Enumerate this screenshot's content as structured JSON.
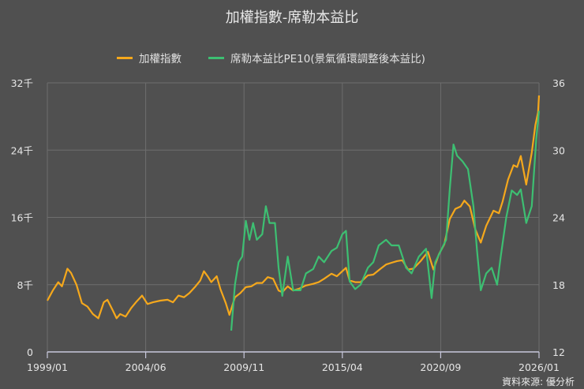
{
  "title": "加權指數-席勒本益比",
  "source": "資料來源: 優分析",
  "colors": {
    "background": "#505050",
    "grid": "#6e6e6e",
    "axis": "#c8c8dc",
    "taiex": "#f5a81c",
    "pe10": "#3dbf72"
  },
  "legend": [
    {
      "label": "加權指數",
      "color": "#f5a81c"
    },
    {
      "label": "席勒本益比PE10(景氣循環調整後本益比)",
      "color": "#3dbf72"
    }
  ],
  "chart_data": {
    "type": "line",
    "title": "加權指數-席勒本益比",
    "xlabel": "",
    "ylabel_left": "加權指數",
    "ylabel_right": "席勒本益比PE10",
    "x_ticks": [
      "1999/01",
      "2004/06",
      "2009/11",
      "2015/04",
      "2020/09",
      "2026/01"
    ],
    "y_left_ticks": [
      "0",
      "8千",
      "16千",
      "24千",
      "32千"
    ],
    "y_left_range": [
      0,
      32000
    ],
    "y_right_ticks": [
      "12",
      "18",
      "24",
      "30",
      "36"
    ],
    "y_right_range": [
      12,
      36
    ],
    "grid": true,
    "legend_position": "top",
    "series": [
      {
        "name": "加權指數",
        "axis": "left",
        "points": [
          [
            1999.0,
            6100
          ],
          [
            1999.3,
            7300
          ],
          [
            1999.6,
            8300
          ],
          [
            1999.8,
            7800
          ],
          [
            2000.1,
            9900
          ],
          [
            2000.3,
            9400
          ],
          [
            2000.6,
            8000
          ],
          [
            2000.9,
            5800
          ],
          [
            2001.2,
            5400
          ],
          [
            2001.5,
            4500
          ],
          [
            2001.8,
            4000
          ],
          [
            2002.1,
            5900
          ],
          [
            2002.3,
            6200
          ],
          [
            2002.6,
            4900
          ],
          [
            2002.8,
            4000
          ],
          [
            2003.0,
            4500
          ],
          [
            2003.3,
            4200
          ],
          [
            2003.6,
            5200
          ],
          [
            2003.9,
            6000
          ],
          [
            2004.2,
            6700
          ],
          [
            2004.5,
            5700
          ],
          [
            2004.8,
            5900
          ],
          [
            2005.2,
            6100
          ],
          [
            2005.6,
            6200
          ],
          [
            2005.9,
            5900
          ],
          [
            2006.2,
            6700
          ],
          [
            2006.5,
            6500
          ],
          [
            2006.8,
            7000
          ],
          [
            2007.1,
            7700
          ],
          [
            2007.4,
            8500
          ],
          [
            2007.6,
            9600
          ],
          [
            2007.8,
            9000
          ],
          [
            2008.0,
            8300
          ],
          [
            2008.3,
            9000
          ],
          [
            2008.5,
            7500
          ],
          [
            2008.8,
            5800
          ],
          [
            2009.0,
            4400
          ],
          [
            2009.3,
            6500
          ],
          [
            2009.6,
            7000
          ],
          [
            2009.9,
            7700
          ],
          [
            2010.2,
            7800
          ],
          [
            2010.5,
            8200
          ],
          [
            2010.8,
            8200
          ],
          [
            2011.1,
            8900
          ],
          [
            2011.4,
            8700
          ],
          [
            2011.7,
            7300
          ],
          [
            2011.9,
            7100
          ],
          [
            2012.2,
            7800
          ],
          [
            2012.5,
            7300
          ],
          [
            2012.8,
            7500
          ],
          [
            2013.2,
            7900
          ],
          [
            2013.6,
            8100
          ],
          [
            2013.9,
            8300
          ],
          [
            2014.2,
            8700
          ],
          [
            2014.6,
            9300
          ],
          [
            2014.9,
            9000
          ],
          [
            2015.2,
            9600
          ],
          [
            2015.4,
            10000
          ],
          [
            2015.6,
            8500
          ],
          [
            2015.9,
            8300
          ],
          [
            2016.2,
            8300
          ],
          [
            2016.6,
            9100
          ],
          [
            2016.9,
            9200
          ],
          [
            2017.3,
            9900
          ],
          [
            2017.6,
            10400
          ],
          [
            2017.9,
            10600
          ],
          [
            2018.2,
            10800
          ],
          [
            2018.5,
            10900
          ],
          [
            2018.8,
            9800
          ],
          [
            2019.1,
            9900
          ],
          [
            2019.5,
            10800
          ],
          [
            2019.9,
            11900
          ],
          [
            2020.2,
            9800
          ],
          [
            2020.5,
            11600
          ],
          [
            2020.8,
            12800
          ],
          [
            2021.1,
            15800
          ],
          [
            2021.4,
            17000
          ],
          [
            2021.7,
            17300
          ],
          [
            2021.9,
            18000
          ],
          [
            2022.2,
            17300
          ],
          [
            2022.5,
            14600
          ],
          [
            2022.8,
            13000
          ],
          [
            2023.1,
            15000
          ],
          [
            2023.5,
            16800
          ],
          [
            2023.8,
            16500
          ],
          [
            2024.0,
            17900
          ],
          [
            2024.3,
            20500
          ],
          [
            2024.6,
            22200
          ],
          [
            2024.8,
            22000
          ],
          [
            2025.0,
            23300
          ],
          [
            2025.3,
            19900
          ],
          [
            2025.6,
            23700
          ],
          [
            2025.8,
            27000
          ],
          [
            2025.95,
            28500
          ],
          [
            2026.0,
            30500
          ]
        ]
      },
      {
        "name": "席勒本益比PE10(景氣循環調整後本益比)",
        "axis": "right",
        "points": [
          [
            2009.1,
            13.9
          ],
          [
            2009.3,
            18.0
          ],
          [
            2009.5,
            20.0
          ],
          [
            2009.7,
            20.5
          ],
          [
            2009.9,
            23.7
          ],
          [
            2010.1,
            22.0
          ],
          [
            2010.3,
            23.5
          ],
          [
            2010.5,
            22.0
          ],
          [
            2010.8,
            22.5
          ],
          [
            2011.0,
            25.0
          ],
          [
            2011.2,
            23.5
          ],
          [
            2011.5,
            23.5
          ],
          [
            2011.7,
            19.5
          ],
          [
            2011.9,
            17.0
          ],
          [
            2012.2,
            20.5
          ],
          [
            2012.5,
            17.5
          ],
          [
            2012.9,
            17.5
          ],
          [
            2013.2,
            19.0
          ],
          [
            2013.6,
            19.4
          ],
          [
            2013.9,
            20.5
          ],
          [
            2014.2,
            20.0
          ],
          [
            2014.6,
            21.0
          ],
          [
            2014.9,
            21.3
          ],
          [
            2015.2,
            22.5
          ],
          [
            2015.4,
            22.8
          ],
          [
            2015.6,
            18.3
          ],
          [
            2015.9,
            17.6
          ],
          [
            2016.2,
            18.0
          ],
          [
            2016.6,
            19.5
          ],
          [
            2016.9,
            20.0
          ],
          [
            2017.2,
            21.5
          ],
          [
            2017.6,
            22.0
          ],
          [
            2017.9,
            21.5
          ],
          [
            2018.3,
            21.5
          ],
          [
            2018.7,
            19.5
          ],
          [
            2019.0,
            19.0
          ],
          [
            2019.4,
            20.5
          ],
          [
            2019.8,
            21.2
          ],
          [
            2020.1,
            16.8
          ],
          [
            2020.3,
            20.0
          ],
          [
            2020.6,
            21.0
          ],
          [
            2020.9,
            22.0
          ],
          [
            2021.1,
            26.5
          ],
          [
            2021.3,
            30.5
          ],
          [
            2021.5,
            29.5
          ],
          [
            2021.8,
            29.0
          ],
          [
            2022.1,
            28.3
          ],
          [
            2022.4,
            25.0
          ],
          [
            2022.6,
            21.0
          ],
          [
            2022.8,
            17.5
          ],
          [
            2023.1,
            19.0
          ],
          [
            2023.4,
            19.5
          ],
          [
            2023.7,
            18.0
          ],
          [
            2023.9,
            20.5
          ],
          [
            2024.2,
            24.0
          ],
          [
            2024.5,
            26.4
          ],
          [
            2024.8,
            26.0
          ],
          [
            2025.0,
            26.5
          ],
          [
            2025.3,
            23.5
          ],
          [
            2025.6,
            25.0
          ],
          [
            2025.85,
            31.0
          ],
          [
            2026.0,
            33.5
          ]
        ]
      }
    ]
  }
}
